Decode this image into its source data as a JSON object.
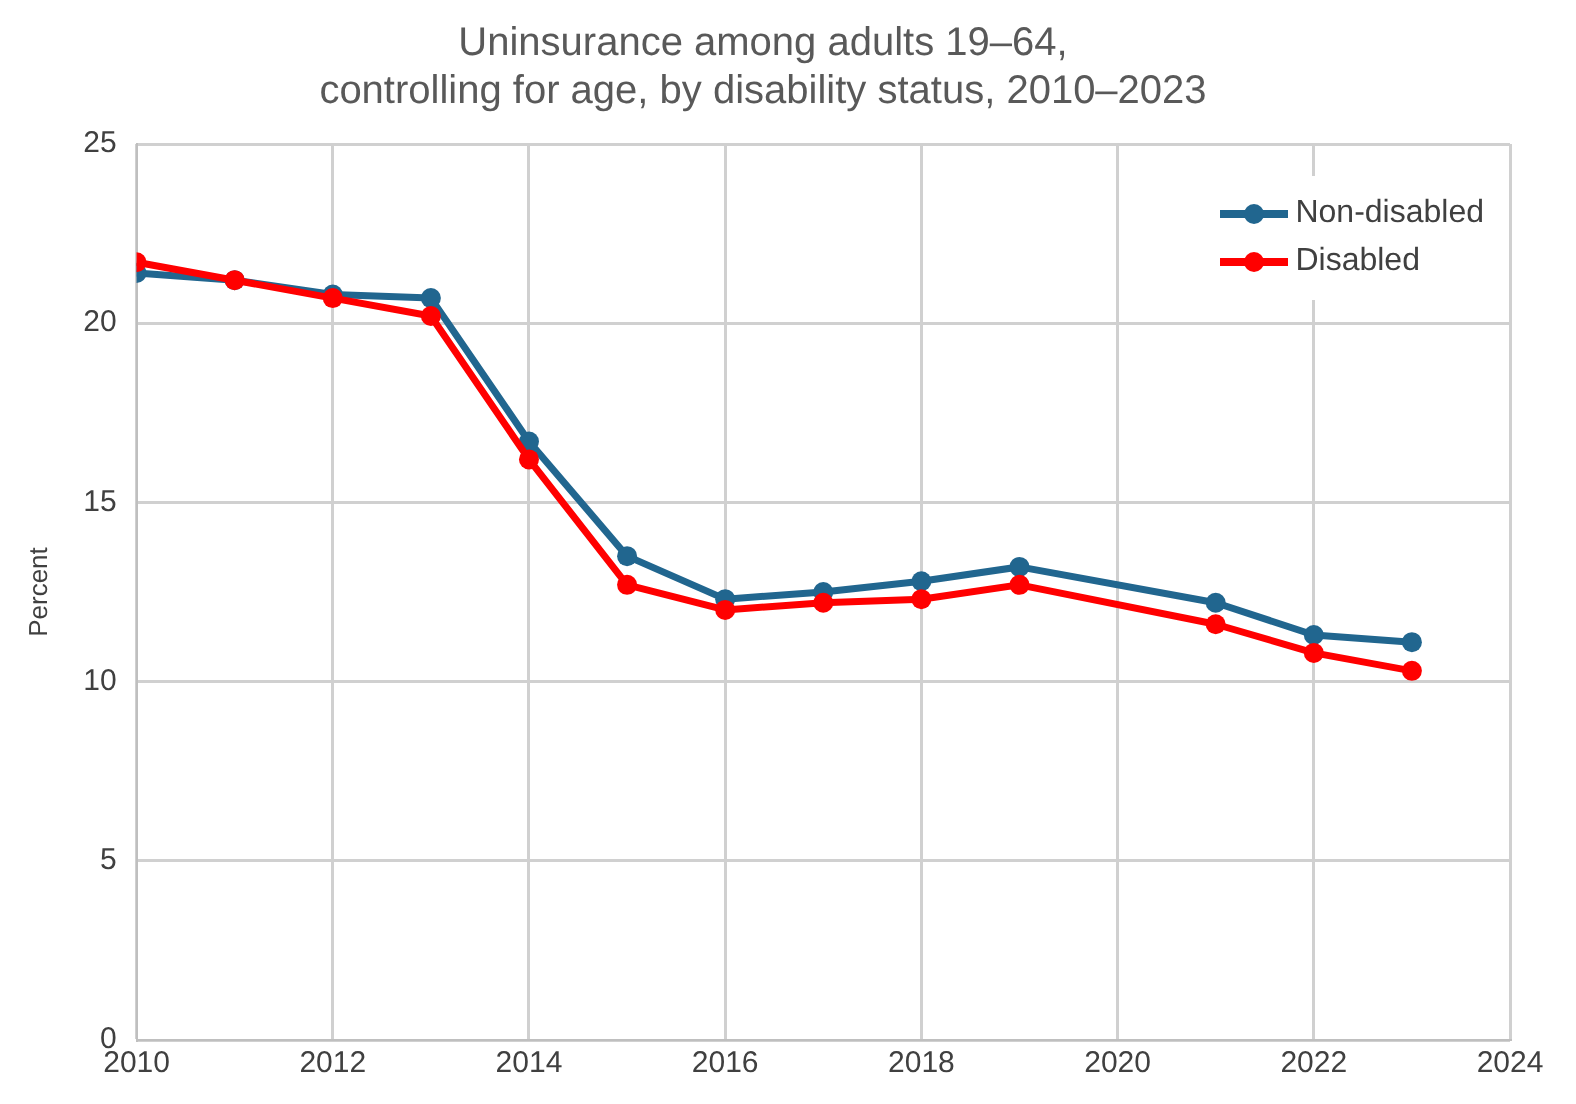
{
  "chart_data": {
    "type": "line",
    "title": "Uninsurance among adults 19–64,\ncontrolling for age, by disability status, 2010–2023",
    "ylabel": "Percent",
    "series": [
      {
        "name": "Non-disabled",
        "color": "#21668f",
        "x": [
          2010,
          2011,
          2012,
          2013,
          2014,
          2015,
          2016,
          2017,
          2018,
          2019,
          2021,
          2022,
          2023
        ],
        "values": [
          21.4,
          21.2,
          20.8,
          20.7,
          16.7,
          13.5,
          12.3,
          12.5,
          12.8,
          13.2,
          12.2,
          11.3,
          11.1
        ]
      },
      {
        "name": "Disabled",
        "color": "#ff0000",
        "x": [
          2010,
          2011,
          2012,
          2013,
          2014,
          2015,
          2016,
          2017,
          2018,
          2019,
          2021,
          2022,
          2023
        ],
        "values": [
          21.7,
          21.2,
          20.7,
          20.2,
          16.2,
          12.7,
          12.0,
          12.2,
          12.3,
          12.7,
          11.6,
          10.8,
          10.3
        ]
      }
    ],
    "xlim": [
      2010,
      2024
    ],
    "xticks": [
      2010,
      2012,
      2014,
      2016,
      2018,
      2020,
      2022,
      2024
    ],
    "ylim": [
      0,
      25
    ],
    "yticks": [
      0,
      5,
      10,
      15,
      20,
      25
    ],
    "grid": true,
    "legend": "top right",
    "marker": "circle",
    "line_style": "solid"
  }
}
